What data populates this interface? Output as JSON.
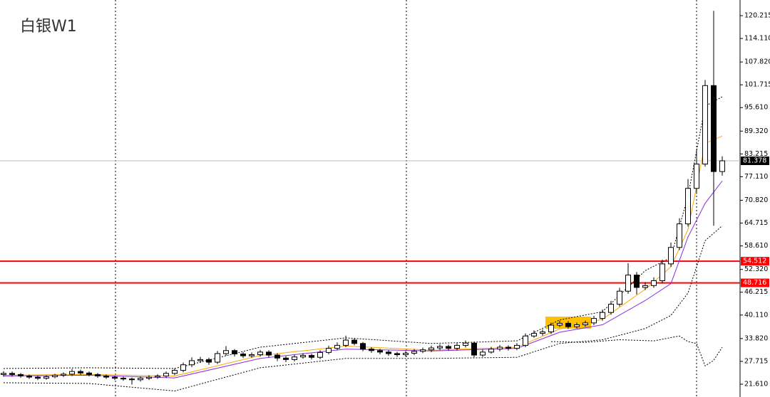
{
  "chart_data": {
    "type": "candlestick",
    "title": "白银W1",
    "open": [
      24.2,
      24.5,
      24.2,
      23.8,
      23.5,
      23.2,
      23.6,
      24.0,
      24.3,
      25.0,
      24.6,
      24.2,
      23.8,
      23.5,
      23.2,
      23.0,
      22.8,
      23.2,
      23.5,
      23.8,
      24.5,
      25.3,
      26.8,
      27.9,
      28.2,
      27.5,
      29.8,
      30.6,
      29.7,
      29.2,
      29.5,
      30.2,
      29.4,
      28.6,
      28.2,
      28.9,
      29.3,
      28.8,
      30.1,
      31.2,
      32.0,
      33.4,
      32.5,
      31.0,
      30.6,
      30.2,
      29.8,
      29.5,
      29.9,
      30.4,
      30.8,
      31.3,
      31.7,
      31.2,
      32.0,
      32.6,
      29.4,
      30.2,
      31.0,
      31.5,
      31.2,
      32.0,
      34.5,
      35.2,
      35.6,
      37.4,
      37.9,
      37.0,
      37.5,
      38.0,
      39.2,
      40.8,
      43.0,
      46.5,
      50.8,
      47.5,
      48.0,
      49.3,
      53.8,
      58.2,
      64.5,
      74.0,
      80.5,
      101.5,
      78.5
    ],
    "high": [
      25.1,
      25.0,
      24.6,
      24.2,
      23.9,
      24.0,
      24.4,
      24.8,
      25.7,
      25.5,
      25.0,
      24.6,
      24.2,
      23.9,
      23.6,
      23.4,
      23.7,
      24.0,
      24.3,
      25.0,
      25.9,
      27.4,
      28.8,
      28.9,
      28.7,
      30.5,
      31.8,
      31.0,
      30.2,
      30.1,
      30.8,
      30.7,
      29.9,
      29.1,
      29.5,
      29.9,
      29.8,
      30.7,
      31.9,
      32.8,
      34.6,
      34.0,
      32.9,
      31.5,
      31.1,
      30.7,
      30.3,
      30.5,
      31.0,
      31.4,
      31.9,
      32.3,
      32.2,
      32.6,
      33.3,
      33.0,
      30.9,
      31.6,
      32.1,
      32.0,
      32.6,
      35.2,
      36.0,
      36.3,
      38.1,
      38.6,
      38.5,
      38.1,
      38.6,
      39.9,
      41.6,
      43.9,
      47.4,
      54.0,
      51.6,
      48.9,
      50.2,
      54.9,
      59.5,
      66.0,
      76.5,
      84.5,
      103.0,
      121.5,
      82.6
    ],
    "low": [
      23.6,
      23.6,
      23.3,
      23.0,
      22.7,
      22.8,
      23.2,
      23.5,
      23.8,
      24.1,
      23.7,
      23.3,
      23.0,
      22.7,
      22.5,
      21.5,
      22.3,
      22.7,
      23.0,
      23.3,
      24.0,
      24.8,
      26.2,
      27.3,
      26.8,
      27.0,
      29.2,
      29.0,
      28.6,
      28.7,
      29.0,
      28.8,
      27.8,
      27.5,
      27.7,
      28.4,
      28.2,
      28.3,
      29.6,
      30.7,
      31.5,
      32.0,
      30.4,
      30.0,
      29.6,
      29.2,
      28.9,
      29.0,
      29.4,
      29.9,
      30.2,
      30.7,
      30.6,
      30.6,
      31.4,
      28.8,
      28.9,
      29.8,
      30.4,
      30.6,
      30.7,
      31.5,
      34.0,
      34.6,
      35.0,
      36.9,
      36.4,
      36.5,
      37.0,
      37.4,
      38.6,
      40.2,
      42.4,
      45.8,
      45.6,
      46.8,
      47.4,
      48.6,
      53.0,
      57.5,
      63.8,
      72.5,
      79.8,
      64.0,
      77.4
    ],
    "close": [
      24.5,
      24.2,
      23.8,
      23.5,
      23.2,
      23.6,
      24.0,
      24.3,
      25.0,
      24.6,
      24.2,
      23.8,
      23.5,
      23.2,
      23.0,
      22.8,
      23.2,
      23.5,
      23.8,
      24.5,
      25.3,
      26.8,
      27.9,
      28.2,
      27.5,
      29.8,
      30.6,
      29.7,
      29.2,
      29.5,
      30.2,
      29.4,
      28.6,
      28.2,
      28.9,
      29.3,
      28.8,
      30.1,
      31.2,
      32.0,
      33.4,
      32.5,
      31.0,
      30.6,
      30.2,
      29.8,
      29.5,
      29.9,
      30.4,
      30.8,
      31.3,
      31.7,
      31.2,
      32.0,
      32.6,
      29.4,
      30.2,
      31.0,
      31.5,
      31.2,
      32.0,
      34.5,
      35.2,
      35.6,
      37.4,
      37.9,
      37.0,
      37.5,
      38.0,
      39.2,
      40.8,
      43.0,
      46.5,
      50.8,
      47.5,
      48.0,
      49.3,
      53.8,
      58.2,
      64.5,
      74.0,
      80.5,
      101.5,
      78.5,
      81.378
    ],
    "up_color": "#ffffff",
    "down_color": "#000000",
    "wick_color": "#000000",
    "lines": [
      {
        "color": "#ffa500",
        "dash": false,
        "x": [
          0,
          10,
          20,
          30,
          40,
          50,
          60,
          65,
          70,
          75,
          78,
          80,
          82,
          84
        ],
        "values": [
          24.0,
          24.2,
          23.8,
          29.3,
          31.8,
          30.7,
          31.5,
          36.4,
          39.0,
          47.0,
          53.0,
          63.0,
          86.0,
          88.0
        ]
      },
      {
        "color": "#8a2be2",
        "dash": false,
        "x": [
          0,
          10,
          20,
          30,
          40,
          50,
          60,
          65,
          70,
          75,
          78,
          80,
          82,
          84
        ],
        "values": [
          23.8,
          24.0,
          23.3,
          28.5,
          31.0,
          30.5,
          31.2,
          35.5,
          37.5,
          44.0,
          48.5,
          61.0,
          70.0,
          76.0
        ]
      },
      {
        "color": "#000000",
        "dash": true,
        "x": [
          0,
          10,
          20,
          30,
          40,
          50,
          60,
          65,
          70,
          75,
          78,
          80,
          82,
          84
        ],
        "values": [
          25.8,
          26.0,
          25.8,
          31.5,
          34.0,
          32.5,
          33.2,
          38.8,
          41.0,
          52.0,
          55.5,
          72.0,
          96.0,
          98.5
        ]
      },
      {
        "color": "#000000",
        "dash": true,
        "x": [
          0,
          10,
          20,
          30,
          40,
          50,
          60,
          65,
          70,
          75,
          78,
          80,
          82,
          84
        ],
        "values": [
          22.0,
          21.8,
          19.8,
          26.0,
          28.5,
          28.5,
          28.8,
          32.5,
          33.5,
          36.5,
          40.0,
          46.0,
          60.0,
          64.0
        ]
      },
      {
        "color": "#000000",
        "dash": true,
        "x": [
          64,
          68,
          72,
          76,
          79,
          80,
          81,
          82,
          83,
          84
        ],
        "values": [
          33.0,
          32.8,
          33.5,
          33.2,
          34.5,
          33.0,
          32.5,
          26.5,
          28.0,
          31.5
        ]
      }
    ],
    "levels": [
      {
        "value": 54.512,
        "color": "#ff0000"
      },
      {
        "value": 48.716,
        "color": "#ff0000"
      }
    ],
    "last_price": {
      "value": 81.378,
      "color": "#b0bec5"
    },
    "ylim": [
      18.18,
      124.4
    ],
    "yticks": [
      120.215,
      {
        "value": 114.11,
        "label": "114.110"
      },
      {
        "value": 107.82,
        "label": "107.820"
      },
      101.715,
      {
        "value": 95.61,
        "label": "95.610"
      },
      {
        "value": 89.32,
        "label": "89.320"
      },
      83.215,
      {
        "value": 77.11,
        "label": "77.110"
      },
      {
        "value": 70.82,
        "label": "70.820"
      },
      64.715,
      {
        "value": 58.61,
        "label": "58.610"
      },
      {
        "value": 52.32,
        "label": "52.320"
      },
      46.215,
      {
        "value": 40.11,
        "label": "40.110"
      },
      {
        "value": 33.82,
        "label": "33.820"
      },
      27.715,
      {
        "value": 21.61,
        "label": "21.610"
      }
    ]
  }
}
